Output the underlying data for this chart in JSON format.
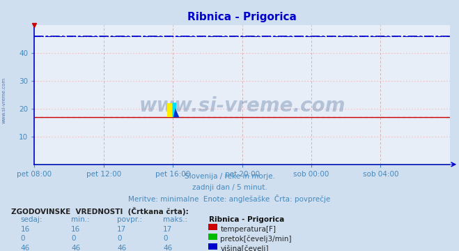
{
  "title": "Ribnica - Prigorica",
  "title_color": "#0000cc",
  "bg_color": "#d0dff0",
  "plot_bg_color": "#e8eef8",
  "subtitle_lines": [
    "Slovenija / reke in morje.",
    "zadnji dan / 5 minut.",
    "Meritve: minimalne  Enote: anglešaške  Črta: povprečje"
  ],
  "tick_color": "#4488bb",
  "watermark": "www.si-vreme.com",
  "ylim": [
    0,
    50
  ],
  "yticks": [
    10,
    20,
    30,
    40
  ],
  "xlim": [
    0,
    288
  ],
  "xtick_positions": [
    0,
    48,
    96,
    144,
    192,
    240
  ],
  "xtick_labels": [
    "pet 08:00",
    "pet 12:00",
    "pet 16:00",
    "pet 20:00",
    "sob 00:00",
    "sob 04:00"
  ],
  "n_points": 289,
  "temp_value": 17.0,
  "pretok_value": 0.0,
  "visina_value": 46.0,
  "temp_color": "#cc0000",
  "pretok_color": "#00bb00",
  "visina_color": "#0000cc",
  "grid_color_h": "#ffaaaa",
  "grid_color_v": "#ccaaaa",
  "axis_color": "#0000cc",
  "table_header": "ZGODOVINSKE  VREDNOSTI  (Črtkana črta):",
  "col_headers": [
    "sedaj:",
    "min.:",
    "povpr.:",
    "maks.:",
    "Ribnica - Prigorica"
  ],
  "rows": [
    [
      16,
      16,
      17,
      17,
      "temperatura[F]"
    ],
    [
      0,
      0,
      0,
      0,
      "pretok[čevelj3/min]"
    ],
    [
      46,
      46,
      46,
      46,
      "višina[čevelj]"
    ]
  ],
  "row_colors": [
    "#cc0000",
    "#00bb00",
    "#0000cc"
  ]
}
